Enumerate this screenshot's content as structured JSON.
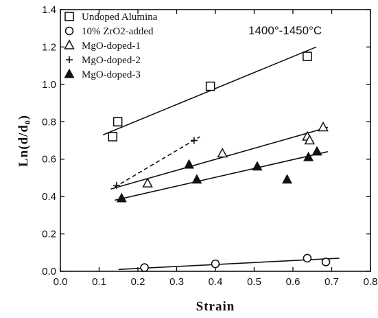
{
  "chart_data": {
    "type": "scatter",
    "title": "",
    "xlabel": "Strain",
    "ylabel": "Ln(d/d₀)",
    "xlim": [
      0.0,
      0.8
    ],
    "ylim": [
      0.0,
      1.4
    ],
    "xticks": [
      "0.0",
      "0.1",
      "0.2",
      "0.3",
      "0.4",
      "0.5",
      "0.6",
      "0.7",
      "0.8"
    ],
    "yticks": [
      "0.0",
      "0.2",
      "0.4",
      "0.6",
      "0.8",
      "1.0",
      "1.2",
      "1.4"
    ],
    "grid": false,
    "legend_position": "top-left",
    "annotation": "1400°-1450°C",
    "series": [
      {
        "name": "Undoped Alumina",
        "marker": "open-square",
        "points": [
          [
            0.135,
            0.72
          ],
          [
            0.148,
            0.8
          ],
          [
            0.387,
            0.99
          ],
          [
            0.637,
            1.15
          ]
        ],
        "fit": {
          "x": [
            0.11,
            0.66
          ],
          "y": [
            0.73,
            1.2
          ],
          "style": "solid"
        }
      },
      {
        "name": "10% ZrO2-added",
        "marker": "open-circle",
        "points": [
          [
            0.217,
            0.02
          ],
          [
            0.4,
            0.04
          ],
          [
            0.637,
            0.07
          ],
          [
            0.685,
            0.05
          ]
        ],
        "fit": {
          "x": [
            0.15,
            0.72
          ],
          "y": [
            0.01,
            0.07
          ],
          "style": "solid"
        }
      },
      {
        "name": "MgO-doped-1",
        "marker": "open-triangle",
        "points": [
          [
            0.225,
            0.47
          ],
          [
            0.418,
            0.63
          ],
          [
            0.637,
            0.72
          ],
          [
            0.643,
            0.7
          ],
          [
            0.678,
            0.77
          ]
        ],
        "fit": {
          "x": [
            0.13,
            0.69
          ],
          "y": [
            0.44,
            0.77
          ],
          "style": "solid"
        }
      },
      {
        "name": "MgO-doped-2",
        "marker": "plus",
        "points": [
          [
            0.145,
            0.46
          ],
          [
            0.345,
            0.7
          ]
        ],
        "fit": {
          "x": [
            0.14,
            0.36
          ],
          "y": [
            0.45,
            0.72
          ],
          "style": "dashed"
        }
      },
      {
        "name": "MgO-doped-3",
        "marker": "filled-triangle",
        "points": [
          [
            0.158,
            0.39
          ],
          [
            0.332,
            0.57
          ],
          [
            0.352,
            0.49
          ],
          [
            0.508,
            0.56
          ],
          [
            0.585,
            0.49
          ],
          [
            0.64,
            0.61
          ],
          [
            0.662,
            0.64
          ]
        ],
        "fit": {
          "x": [
            0.14,
            0.69
          ],
          "y": [
            0.38,
            0.64
          ],
          "style": "solid"
        }
      }
    ]
  }
}
